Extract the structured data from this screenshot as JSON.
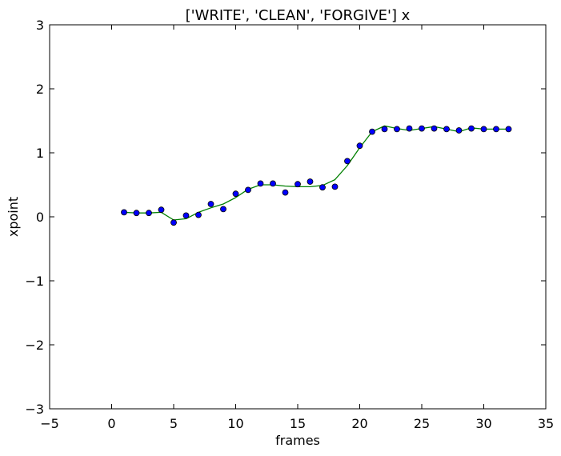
{
  "chart_data": {
    "type": "scatter",
    "title": "['WRITE', 'CLEAN', 'FORGIVE'] x",
    "xlabel": "frames",
    "ylabel": "xpoint",
    "xlim": [
      -5,
      35
    ],
    "ylim": [
      -3,
      3
    ],
    "xticks": [
      -5,
      0,
      5,
      10,
      15,
      20,
      25,
      30,
      35
    ],
    "yticks": [
      -3,
      -2,
      -1,
      0,
      1,
      2,
      3
    ],
    "xtick_labels": [
      "−5",
      "0",
      "5",
      "10",
      "15",
      "20",
      "25",
      "30",
      "35"
    ],
    "ytick_labels": [
      "−3",
      "−2",
      "−1",
      "0",
      "1",
      "2",
      "3"
    ],
    "grid": false,
    "legend": "none",
    "series": [
      {
        "type": "scatter",
        "color": "#0000ff",
        "edge_color": "#000000",
        "x": [
          1,
          2,
          3,
          4,
          5,
          6,
          7,
          8,
          9,
          10,
          11,
          12,
          13,
          14,
          15,
          16,
          17,
          18,
          19,
          20,
          21,
          22,
          23,
          24,
          25,
          26,
          27,
          28,
          29,
          30,
          31,
          32
        ],
        "y": [
          0.07,
          0.06,
          0.06,
          0.11,
          -0.09,
          0.02,
          0.03,
          0.2,
          0.12,
          0.36,
          0.42,
          0.52,
          0.52,
          0.38,
          0.51,
          0.55,
          0.46,
          0.47,
          0.87,
          1.11,
          1.33,
          1.37,
          1.37,
          1.38,
          1.38,
          1.38,
          1.37,
          1.35,
          1.38,
          1.37,
          1.37,
          1.37
        ]
      },
      {
        "type": "line",
        "color": "#008000",
        "x": [
          1,
          2,
          3,
          4,
          5,
          6,
          7,
          8,
          9,
          10,
          11,
          12,
          13,
          14,
          15,
          16,
          17,
          18,
          19,
          20,
          21,
          22,
          23,
          24,
          25,
          26,
          27,
          28,
          29,
          30,
          31,
          32
        ],
        "y": [
          0.07,
          0.06,
          0.06,
          0.07,
          -0.05,
          -0.03,
          0.07,
          0.14,
          0.2,
          0.3,
          0.43,
          0.5,
          0.5,
          0.48,
          0.47,
          0.47,
          0.49,
          0.58,
          0.8,
          1.08,
          1.33,
          1.42,
          1.38,
          1.35,
          1.38,
          1.41,
          1.37,
          1.33,
          1.39,
          1.37,
          1.37,
          1.37
        ]
      }
    ]
  }
}
